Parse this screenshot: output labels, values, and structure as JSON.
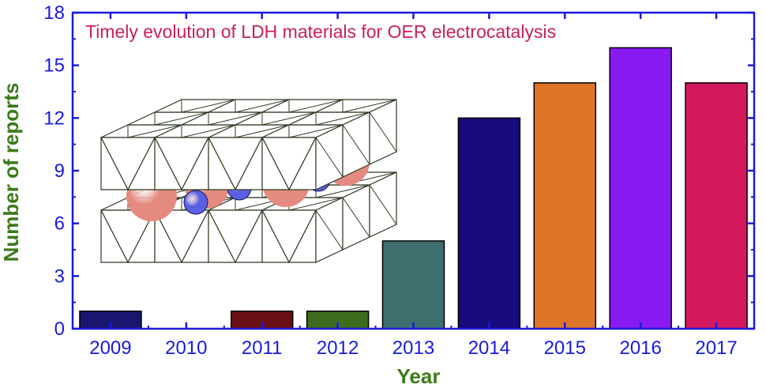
{
  "chart_data": {
    "type": "bar",
    "title": "Timely evolution of LDH materials for OER electrocatalysis",
    "xlabel": "Year",
    "ylabel": "Number of reports",
    "categories": [
      "2009",
      "2010",
      "2011",
      "2012",
      "2013",
      "2014",
      "2015",
      "2016",
      "2017"
    ],
    "values": [
      1,
      0,
      1,
      1,
      5,
      12,
      14,
      16,
      14
    ],
    "bar_colors": [
      "#1a1670",
      "#1a1670",
      "#6a0f14",
      "#3f6b1e",
      "#3f6e6e",
      "#160a7c",
      "#dd7428",
      "#8a1af2",
      "#d4185e"
    ],
    "ylim": [
      0,
      18
    ],
    "yticks": [
      "0",
      "3",
      "6",
      "9",
      "12",
      "15",
      "18"
    ],
    "grid": false,
    "legend": "none"
  },
  "colors": {
    "axis": "#1a1adc",
    "title": "#c8205a",
    "axis_title": "#3c7a1a"
  },
  "illustration": {
    "name": "LDH layered structure illustration",
    "octahedron_stroke": "#2f3b24",
    "anion_color": "#e58a7e",
    "cation_color": "#5b5fe3"
  }
}
